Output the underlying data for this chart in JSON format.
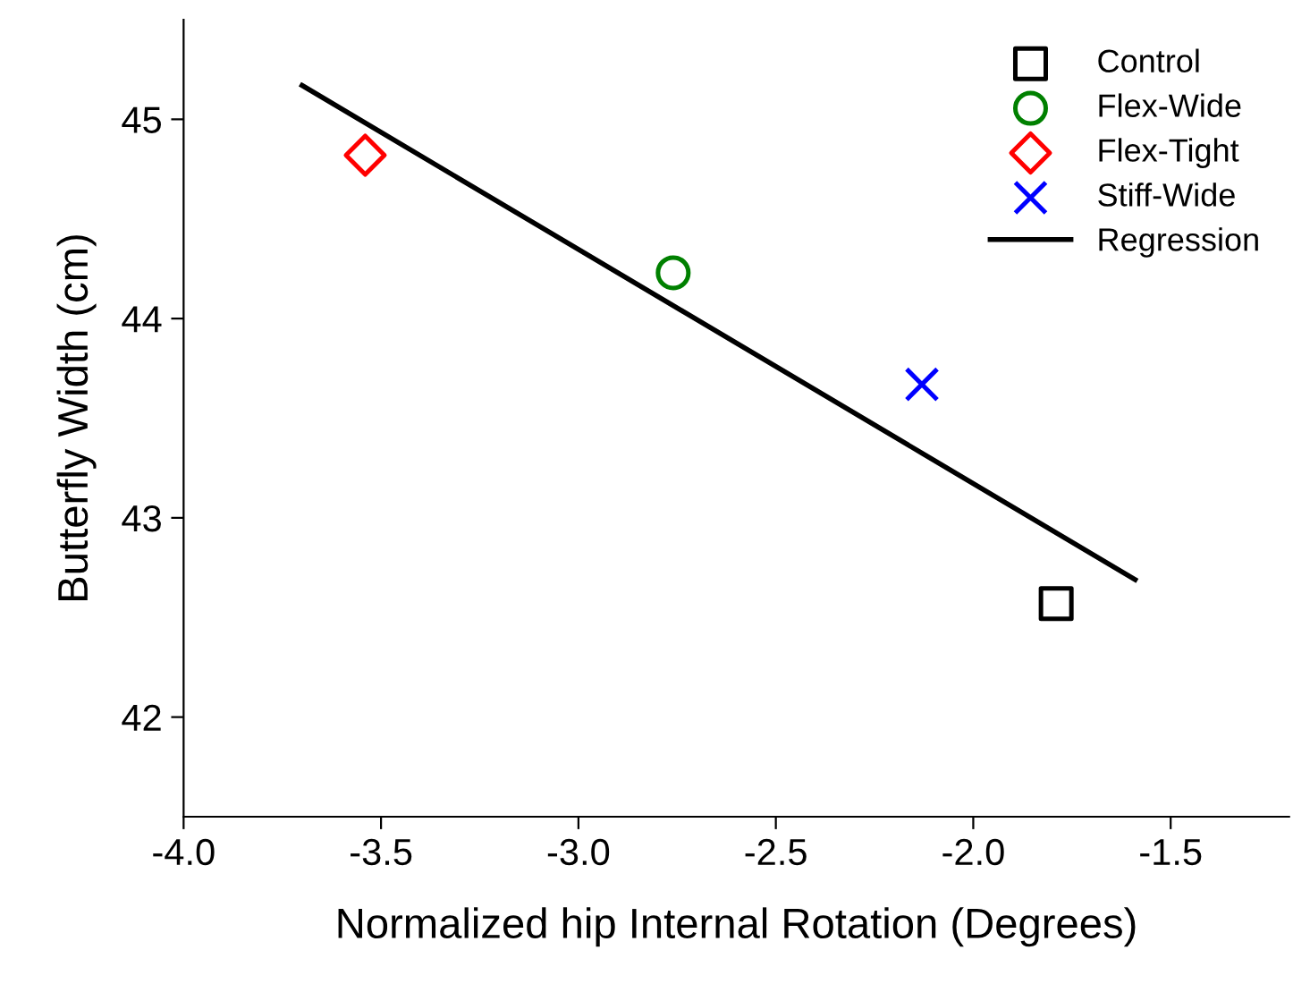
{
  "chart_data": {
    "type": "scatter",
    "xlabel": "Normalized hip Internal Rotation (Degrees)",
    "ylabel": "Butterfly Width (cm)",
    "xlim": [
      -4.0,
      -1.2
    ],
    "ylim": [
      41.5,
      45.5
    ],
    "xticks": [
      {
        "value": -4.0,
        "label": "-4.0"
      },
      {
        "value": -3.5,
        "label": "-3.5"
      },
      {
        "value": -3.0,
        "label": "-3.0"
      },
      {
        "value": -2.5,
        "label": "-2.5"
      },
      {
        "value": -2.0,
        "label": "-2.0"
      },
      {
        "value": -1.5,
        "label": "-1.5"
      }
    ],
    "yticks": [
      42,
      43,
      44,
      45
    ],
    "grid": false,
    "legend": "top right",
    "series": [
      {
        "name": "Control",
        "color": "#000000",
        "marker": "square",
        "x": [
          -1.79
        ],
        "values": [
          42.57
        ]
      },
      {
        "name": "Flex-Wide",
        "color": "#008000",
        "marker": "circle",
        "x": [
          -2.76
        ],
        "values": [
          44.23
        ]
      },
      {
        "name": "Flex-Tight",
        "color": "#ff0000",
        "marker": "diamond",
        "x": [
          -3.54
        ],
        "values": [
          44.82
        ]
      },
      {
        "name": "Stiff-Wide",
        "color": "#0000ff",
        "marker": "cross",
        "x": [
          -2.13
        ],
        "values": [
          43.67
        ]
      },
      {
        "name": "Regression",
        "type": "line",
        "color": "#000000",
        "marker": "none",
        "line_style": "solid",
        "x": [
          -3.7,
          -1.59
        ],
        "values": [
          45.17,
          42.69
        ]
      }
    ]
  }
}
